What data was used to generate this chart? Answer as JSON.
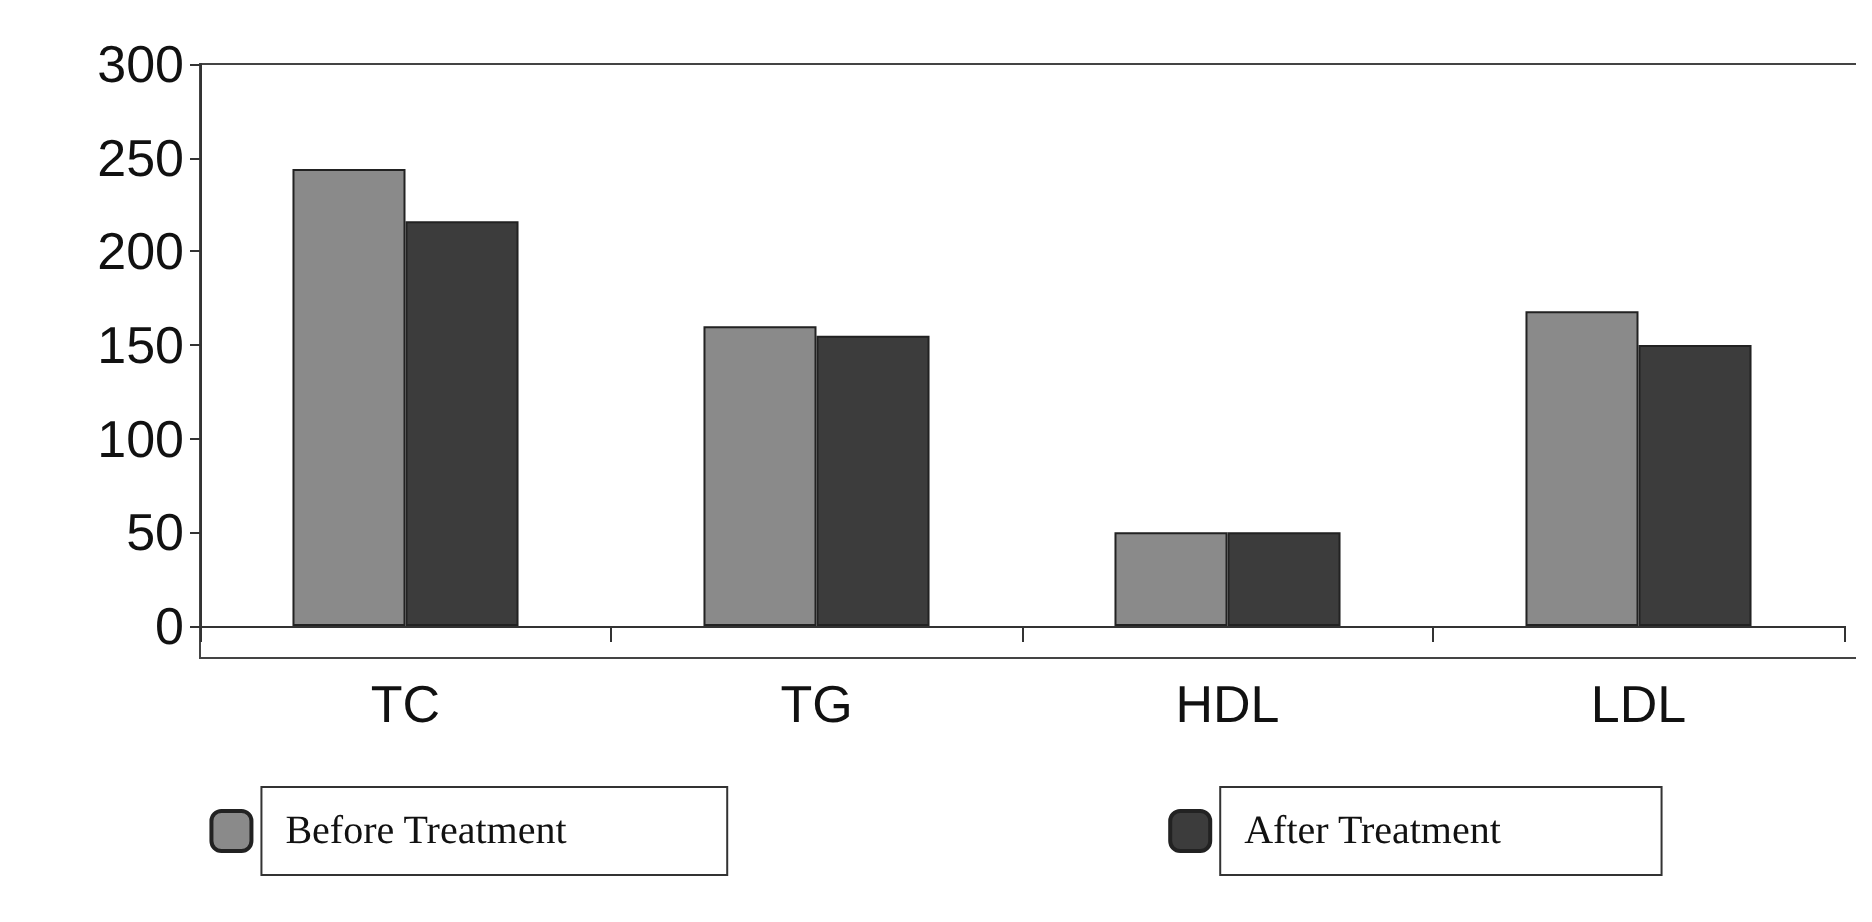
{
  "chart_data": {
    "type": "bar",
    "categories": [
      "TC",
      "TG",
      "HDL",
      "LDL"
    ],
    "series": [
      {
        "name": "Before Treatment",
        "color": "#8a8a8a",
        "values": [
          244,
          160,
          50,
          168
        ]
      },
      {
        "name": "After Treatment",
        "color": "#3c3c3c",
        "values": [
          216,
          155,
          50,
          150
        ]
      }
    ],
    "ylim": [
      0,
      300
    ],
    "yticks": [
      0,
      50,
      100,
      150,
      200,
      250,
      300
    ],
    "grid": false,
    "legend": "bottom"
  }
}
